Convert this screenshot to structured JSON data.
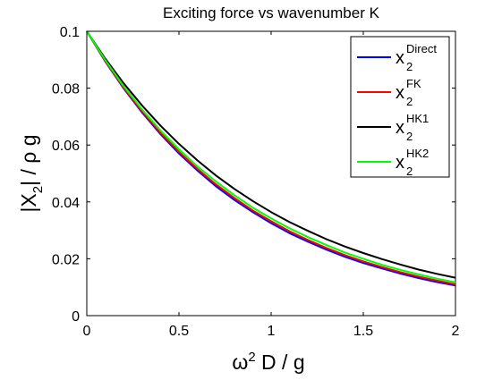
{
  "chart_data": {
    "type": "line",
    "title": "Exciting force vs wavenumber K",
    "xlabel": {
      "main": "ω",
      "sup": "2",
      "rest": " D / g"
    },
    "ylabel": {
      "main": "|X",
      "sub": "2",
      "rest": "| / ρ g"
    },
    "xlim": [
      0,
      2
    ],
    "ylim": [
      0,
      0.1
    ],
    "xticks": [
      0,
      0.5,
      1,
      1.5,
      2
    ],
    "xtick_labels": [
      "0",
      "0.5",
      "1",
      "1.5",
      "2"
    ],
    "yticks": [
      0,
      0.02,
      0.04,
      0.06,
      0.08,
      0.1
    ],
    "ytick_labels": [
      "0",
      "0.02",
      "0.04",
      "0.06",
      "0.08",
      "0.1"
    ],
    "grid": false,
    "legend_position": "top-right",
    "x": [
      0,
      0.1,
      0.2,
      0.3,
      0.4,
      0.5,
      0.6,
      0.7,
      0.8,
      0.9,
      1.0,
      1.1,
      1.2,
      1.3,
      1.4,
      1.5,
      1.6,
      1.7,
      1.8,
      1.9,
      2.0
    ],
    "series": [
      {
        "name": {
          "base": "x",
          "sub": "2",
          "sup": "Direct"
        },
        "color": "#0000ff",
        "values": [
          0.1,
          0.0894,
          0.0799,
          0.0714,
          0.0638,
          0.057,
          0.051,
          0.0455,
          0.0407,
          0.0364,
          0.0325,
          0.029,
          0.026,
          0.0232,
          0.0207,
          0.0185,
          0.0166,
          0.0148,
          0.0132,
          0.0118,
          0.0106
        ]
      },
      {
        "name": {
          "base": "x",
          "sub": "2",
          "sup": "FK"
        },
        "color": "#ff0000",
        "values": [
          0.1,
          0.0896,
          0.0802,
          0.0718,
          0.0643,
          0.0576,
          0.0516,
          0.0462,
          0.0414,
          0.037,
          0.0332,
          0.0297,
          0.0266,
          0.0238,
          0.0213,
          0.0191,
          0.0171,
          0.0153,
          0.0137,
          0.0123,
          0.011
        ]
      },
      {
        "name": {
          "base": "x",
          "sub": "2",
          "sup": "HK1"
        },
        "color": "#000000",
        "values": [
          0.1,
          0.0904,
          0.0817,
          0.0739,
          0.0668,
          0.0604,
          0.0546,
          0.0493,
          0.0446,
          0.0403,
          0.0364,
          0.0329,
          0.0298,
          0.0269,
          0.0243,
          0.022,
          0.0199,
          0.018,
          0.0162,
          0.0147,
          0.0133
        ]
      },
      {
        "name": {
          "base": "x",
          "sub": "2",
          "sup": "HK2"
        },
        "color": "#00ff00",
        "values": [
          0.1,
          0.0899,
          0.0807,
          0.0725,
          0.0651,
          0.0585,
          0.0525,
          0.0472,
          0.0424,
          0.038,
          0.0342,
          0.0307,
          0.0276,
          0.0248,
          0.0222,
          0.02,
          0.0179,
          0.0161,
          0.0145,
          0.013,
          0.0117
        ]
      }
    ]
  }
}
